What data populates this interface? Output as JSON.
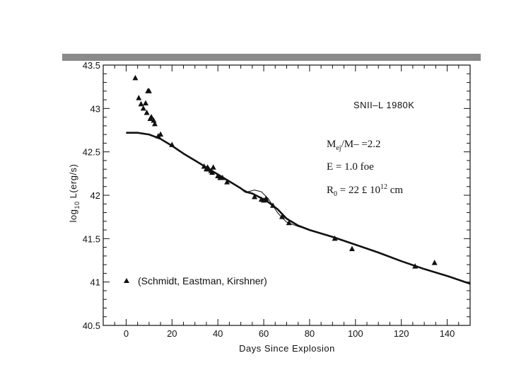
{
  "chart_data": {
    "type": "scatter",
    "xlabel": "Days Since Explosion",
    "ylabel": {
      "prefix": "log",
      "sub": "10",
      "suffix": " L(erg/s)"
    },
    "xlim": [
      -10,
      150
    ],
    "ylim": [
      40.5,
      43.5
    ],
    "x_ticks": [
      0,
      20,
      40,
      60,
      80,
      100,
      120,
      140
    ],
    "y_ticks": [
      40.5,
      41,
      41.5,
      42,
      42.5,
      43,
      43.5
    ],
    "object_label": "SNII–L  1980K",
    "annotations": {
      "mass": {
        "main": "M",
        "sub": "ej",
        "rest": "/M– =2.2"
      },
      "energy": {
        "text": "E = 1.0 foe"
      },
      "radius": {
        "main": "R",
        "sub": "0",
        "rest": " = 22 £ 10",
        "sup": "12",
        "unit": " cm"
      }
    },
    "legend": {
      "label": "(Schmidt, Eastman, Kirshner)",
      "marker": "triangle"
    },
    "series": [
      {
        "name": "(Schmidt, Eastman, Kirshner)",
        "kind": "points",
        "x": [
          4,
          5.5,
          6.5,
          7.5,
          8.5,
          9,
          9.5,
          10,
          10.5,
          11,
          12,
          12.5,
          14,
          15,
          20,
          34,
          35,
          35.5,
          36,
          37,
          37.5,
          38,
          40,
          41,
          42,
          44,
          56,
          59,
          60,
          61,
          64,
          68,
          71,
          91,
          98.5,
          126,
          134.5
        ],
        "y": [
          43.35,
          43.12,
          43.05,
          43.0,
          43.06,
          42.95,
          43.2,
          43.2,
          42.88,
          42.9,
          42.86,
          42.82,
          42.68,
          42.7,
          42.58,
          42.33,
          42.3,
          42.32,
          42.3,
          42.28,
          42.26,
          42.32,
          42.22,
          42.2,
          42.2,
          42.15,
          41.98,
          41.95,
          41.94,
          41.96,
          41.88,
          41.75,
          41.68,
          41.5,
          41.38,
          41.18,
          41.22
        ]
      },
      {
        "name": "",
        "kind": "model-thick",
        "x": [
          0,
          5,
          10,
          15,
          20,
          25,
          30,
          35,
          40,
          45,
          50,
          52,
          55,
          58,
          62,
          66,
          70,
          75,
          80,
          90,
          100,
          110,
          120,
          130,
          140,
          150
        ],
        "y": [
          42.72,
          42.72,
          42.7,
          42.65,
          42.57,
          42.48,
          42.4,
          42.32,
          42.24,
          42.16,
          42.08,
          42.04,
          42.02,
          41.98,
          41.92,
          41.84,
          41.73,
          41.65,
          41.6,
          41.52,
          41.43,
          41.34,
          41.24,
          41.15,
          41.07,
          40.98
        ]
      },
      {
        "name": "",
        "kind": "model-thin",
        "x": [
          40,
          45,
          50,
          53,
          56,
          59,
          62,
          64,
          66,
          68,
          70,
          75,
          80
        ],
        "y": [
          42.24,
          42.16,
          42.08,
          42.04,
          42.06,
          42.04,
          41.96,
          41.88,
          41.8,
          41.74,
          41.69,
          41.64,
          41.6
        ]
      }
    ]
  }
}
